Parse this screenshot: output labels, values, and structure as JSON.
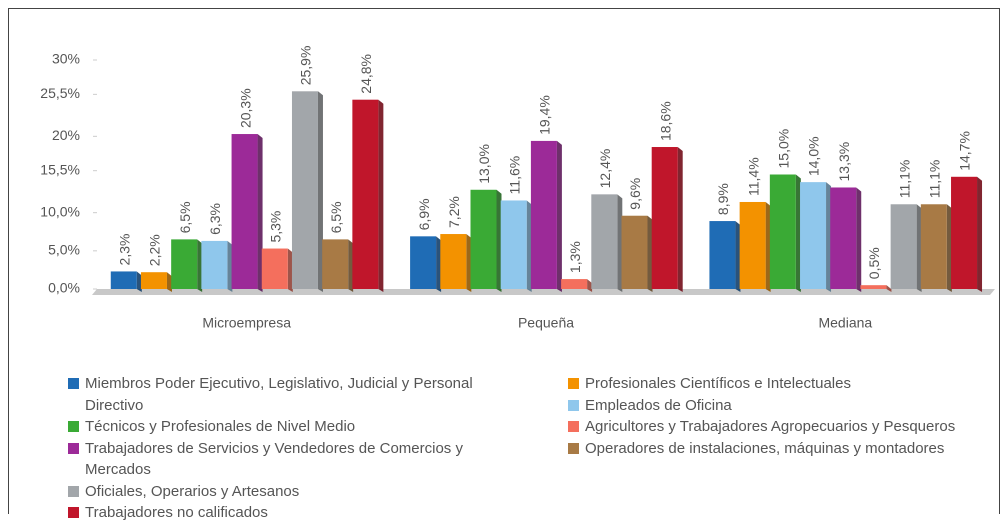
{
  "chart_data": {
    "type": "bar",
    "categories": [
      "Microempresa",
      "Pequeña",
      "Mediana"
    ],
    "ylim": [
      0,
      30
    ],
    "yticks": [
      {
        "value": 0,
        "label": "0,0%"
      },
      {
        "value": 5,
        "label": "5,0%"
      },
      {
        "value": 10,
        "label": "10,0%"
      },
      {
        "value": 15.5,
        "label": "15,5%"
      },
      {
        "value": 20,
        "label": "20%"
      },
      {
        "value": 25.5,
        "label": "25,5%"
      },
      {
        "value": 30,
        "label": "30%"
      }
    ],
    "legend": "bottom",
    "series": [
      {
        "name": "Miembros Poder Ejecutivo, Legislativo, Judicial y Personal Directivo",
        "color": "#1f6cb5",
        "values": [
          2.3,
          6.9,
          8.9
        ],
        "value_labels": [
          "2,3%",
          "6,9%",
          "8,9%"
        ]
      },
      {
        "name": "Profesionales Científicos e Intelectuales",
        "color": "#f39200",
        "values": [
          2.2,
          7.2,
          11.4
        ],
        "value_labels": [
          "2,2%",
          "7,2%",
          "11,4%"
        ]
      },
      {
        "name": "Técnicos y Profesionales de Nivel Medio",
        "color": "#3aaa35",
        "values": [
          6.5,
          13.0,
          15.0
        ],
        "value_labels": [
          "6,5%",
          "13,0%",
          "15,0%"
        ]
      },
      {
        "name": "Empleados de Oficina",
        "color": "#8fc7ec",
        "values": [
          6.3,
          11.6,
          14.0
        ],
        "value_labels": [
          "6,3%",
          "11,6%",
          "14,0%"
        ]
      },
      {
        "name": "Trabajadores de Servicios y Vendedores de Comercios y Mercados",
        "color": "#9c2a98",
        "values": [
          20.3,
          19.4,
          13.3
        ],
        "value_labels": [
          "20,3%",
          "19,4%",
          "13,3%"
        ]
      },
      {
        "name": "Agricultores y Trabajadores Agropecuarios y Pesqueros",
        "color": "#f46f5d",
        "values": [
          5.3,
          1.3,
          0.5
        ],
        "value_labels": [
          "5,3%",
          "1,3%",
          "0,5%"
        ]
      },
      {
        "name": "Oficiales, Operarios y Artesanos",
        "color": "#a2a6aa",
        "values": [
          25.9,
          12.4,
          11.1
        ],
        "value_labels": [
          "25,9%",
          "12,4%",
          "11,1%"
        ]
      },
      {
        "name": "Operadores de instalaciones, máquinas y montadores",
        "color": "#a87a45",
        "values": [
          6.5,
          9.6,
          11.1
        ],
        "value_labels": [
          "6,5%",
          "9,6%",
          "11,1%"
        ]
      },
      {
        "name": "Trabajadores no calificados",
        "color": "#c0162b",
        "values": [
          24.8,
          18.6,
          14.7
        ],
        "value_labels": [
          "24,8%",
          "18,6%",
          "14,7%"
        ]
      }
    ]
  }
}
